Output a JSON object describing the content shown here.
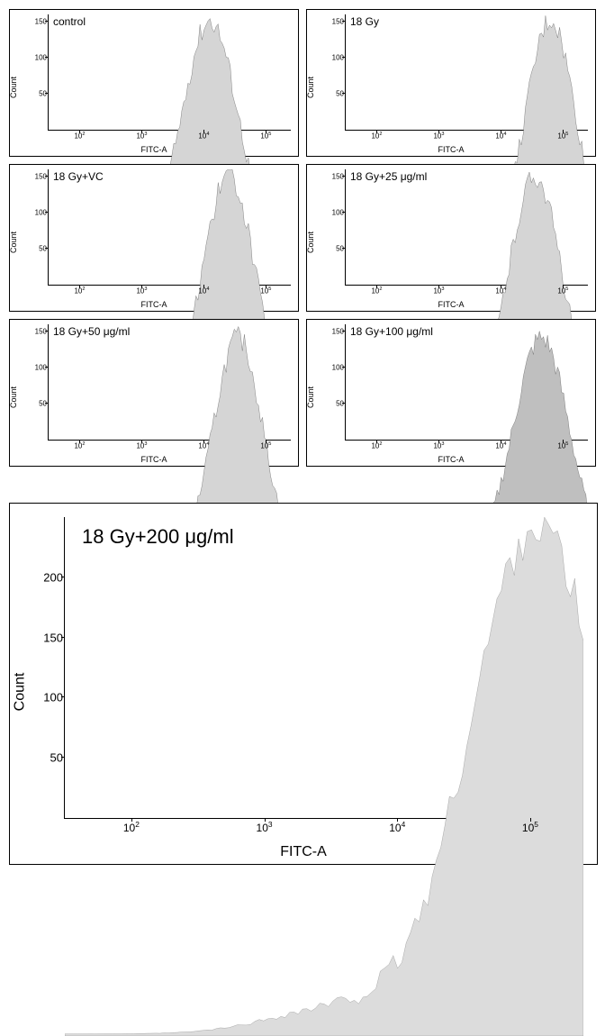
{
  "common": {
    "x_axis_label": "FITC-A",
    "y_axis_label": "Count",
    "x_ticks": [
      {
        "label": "10",
        "sup": "2",
        "log_pos": 2
      },
      {
        "label": "10",
        "sup": "3",
        "log_pos": 3
      },
      {
        "label": "10",
        "sup": "4",
        "log_pos": 4
      },
      {
        "label": "10",
        "sup": "5",
        "log_pos": 5
      }
    ],
    "x_log_min": 1.5,
    "x_log_max": 5.4,
    "fill_color": "#d5d5d5",
    "stroke_color": "#404040",
    "border_color": "#000000",
    "background_color": "#ffffff",
    "font_color": "#000000"
  },
  "small_panels": [
    {
      "label": "control",
      "y_max": 160,
      "y_ticks": [
        50,
        100,
        150
      ],
      "peak_log": 4.1,
      "peak_count": 155,
      "spread": 0.45,
      "fill": "#d5d5d5"
    },
    {
      "label": "18 Gy",
      "y_max": 160,
      "y_ticks": [
        50,
        100,
        150
      ],
      "peak_log": 4.8,
      "peak_count": 155,
      "spread": 0.4,
      "fill": "#d5d5d5"
    },
    {
      "label": "18 Gy+VC",
      "y_max": 160,
      "y_ticks": [
        50,
        100,
        150
      ],
      "peak_log": 4.4,
      "peak_count": 155,
      "spread": 0.42,
      "fill": "#d5d5d5"
    },
    {
      "label": "18 Gy+25 μg/ml",
      "y_max": 160,
      "y_ticks": [
        50,
        100,
        150
      ],
      "peak_log": 4.55,
      "peak_count": 155,
      "spread": 0.42,
      "fill": "#d5d5d5"
    },
    {
      "label": "18 Gy+50 μg/ml",
      "y_max": 160,
      "y_ticks": [
        50,
        100,
        150
      ],
      "peak_log": 4.55,
      "peak_count": 150,
      "spread": 0.4,
      "fill": "#d5d5d5"
    },
    {
      "label": "18 Gy+100 μg/ml",
      "y_max": 160,
      "y_ticks": [
        50,
        100,
        150
      ],
      "peak_log": 4.65,
      "peak_count": 150,
      "spread": 0.45,
      "fill": "#bfbfbf"
    }
  ],
  "large_panel": {
    "label": "18 Gy+200 μg/ml",
    "y_max": 250,
    "y_ticks": [
      50,
      100,
      150,
      200
    ],
    "peak_log": 5.05,
    "peak_count": 245,
    "spread": 0.5,
    "fill": "#dcdcdc"
  }
}
